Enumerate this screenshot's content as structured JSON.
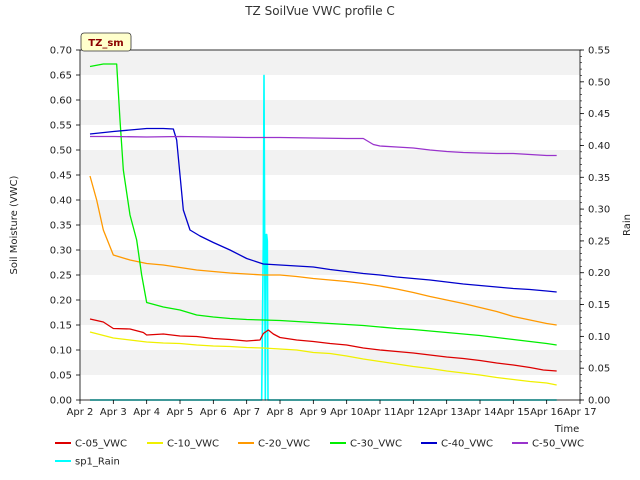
{
  "chart_data": {
    "type": "line",
    "title": "TZ SoilVue VWC profile C",
    "xlabel": "Time",
    "ylabel": "Soil Moisture (VWC)",
    "y2label": "Rain",
    "tag": "TZ_sm",
    "xlim": [
      2,
      17
    ],
    "ylim": [
      0,
      0.7
    ],
    "y2lim": [
      0,
      0.55
    ],
    "x_ticks": [
      2,
      3,
      4,
      5,
      6,
      7,
      8,
      9,
      10,
      11,
      12,
      13,
      14,
      15,
      16,
      17
    ],
    "x_tick_labels": [
      "Apr 2",
      "Apr 3",
      "Apr 4",
      "Apr 5",
      "Apr 6",
      "Apr 7",
      "Apr 8",
      "Apr 9",
      "Apr 10",
      "Apr 11",
      "Apr 12",
      "Apr 13",
      "Apr 14",
      "Apr 15",
      "Apr 16",
      "Apr 17"
    ],
    "y_ticks": [
      0,
      0.05,
      0.1,
      0.15,
      0.2,
      0.25,
      0.3,
      0.35,
      0.4,
      0.45,
      0.5,
      0.55,
      0.6,
      0.65,
      0.7
    ],
    "y_tick_labels": [
      "0.00",
      "0.05",
      "0.10",
      "0.15",
      "0.20",
      "0.25",
      "0.30",
      "0.35",
      "0.40",
      "0.45",
      "0.50",
      "0.55",
      "0.60",
      "0.65",
      "0.70"
    ],
    "y2_ticks": [
      0,
      0.05,
      0.1,
      0.15,
      0.2,
      0.25,
      0.3,
      0.35,
      0.4,
      0.45,
      0.5,
      0.55
    ],
    "y2_tick_labels": [
      "0.00",
      "0.05",
      "0.10",
      "0.15",
      "0.20",
      "0.25",
      "0.30",
      "0.35",
      "0.40",
      "0.45",
      "0.50",
      "0.55"
    ],
    "grid": "horizontal bands",
    "legend_placement": "bottom",
    "series": [
      {
        "name": "C-05_VWC",
        "color": "#dd0000",
        "axis": "left",
        "x": [
          2.3,
          2.7,
          3.0,
          3.5,
          3.9,
          4.0,
          4.5,
          5.0,
          5.5,
          6.0,
          6.5,
          7.0,
          7.4,
          7.5,
          7.65,
          7.8,
          8.0,
          8.5,
          9.0,
          9.5,
          10.0,
          10.5,
          11.0,
          11.5,
          12.0,
          12.5,
          13.0,
          13.5,
          14.0,
          14.5,
          15.0,
          15.5,
          15.9,
          16.3
        ],
        "y": [
          0.162,
          0.156,
          0.143,
          0.142,
          0.135,
          0.13,
          0.132,
          0.128,
          0.127,
          0.123,
          0.121,
          0.118,
          0.12,
          0.133,
          0.14,
          0.132,
          0.125,
          0.12,
          0.117,
          0.113,
          0.11,
          0.104,
          0.1,
          0.097,
          0.094,
          0.09,
          0.086,
          0.083,
          0.079,
          0.074,
          0.07,
          0.065,
          0.06,
          0.058
        ]
      },
      {
        "name": "C-10_VWC",
        "color": "#f0f000",
        "axis": "left",
        "x": [
          2.3,
          3.0,
          3.5,
          4.0,
          4.5,
          5.0,
          5.5,
          6.0,
          6.5,
          7.0,
          7.5,
          8.0,
          8.5,
          9.0,
          9.5,
          10.0,
          10.5,
          11.0,
          11.5,
          12.0,
          12.5,
          13.0,
          13.5,
          14.0,
          14.5,
          15.0,
          15.5,
          16.0,
          16.3
        ],
        "y": [
          0.136,
          0.124,
          0.12,
          0.116,
          0.114,
          0.113,
          0.11,
          0.108,
          0.107,
          0.105,
          0.104,
          0.102,
          0.1,
          0.095,
          0.093,
          0.088,
          0.082,
          0.077,
          0.072,
          0.067,
          0.063,
          0.058,
          0.054,
          0.05,
          0.045,
          0.041,
          0.037,
          0.034,
          0.03
        ]
      },
      {
        "name": "C-20_VWC",
        "color": "#ff9900",
        "axis": "left",
        "x": [
          2.3,
          2.5,
          2.7,
          3.0,
          3.5,
          4.0,
          4.5,
          5.0,
          5.5,
          6.0,
          6.5,
          7.0,
          7.5,
          8.0,
          8.5,
          9.0,
          9.5,
          10.0,
          10.5,
          11.0,
          11.5,
          12.0,
          12.5,
          13.0,
          13.5,
          14.0,
          14.5,
          15.0,
          15.5,
          16.0,
          16.3
        ],
        "y": [
          0.448,
          0.4,
          0.34,
          0.29,
          0.28,
          0.273,
          0.27,
          0.265,
          0.26,
          0.257,
          0.254,
          0.252,
          0.25,
          0.25,
          0.247,
          0.243,
          0.24,
          0.237,
          0.233,
          0.228,
          0.222,
          0.215,
          0.207,
          0.2,
          0.193,
          0.185,
          0.177,
          0.167,
          0.16,
          0.153,
          0.15
        ]
      },
      {
        "name": "C-30_VWC",
        "color": "#00ee00",
        "axis": "left",
        "x": [
          2.3,
          2.7,
          3.1,
          3.2,
          3.3,
          3.5,
          3.7,
          3.85,
          4.0,
          4.5,
          5.0,
          5.5,
          6.0,
          6.5,
          7.0,
          7.5,
          8.0,
          8.5,
          9.0,
          9.5,
          10.0,
          10.5,
          11.0,
          11.5,
          12.0,
          12.5,
          13.0,
          13.5,
          14.0,
          14.5,
          15.0,
          15.5,
          16.0,
          16.3
        ],
        "y": [
          0.667,
          0.672,
          0.672,
          0.56,
          0.46,
          0.37,
          0.32,
          0.25,
          0.195,
          0.186,
          0.18,
          0.17,
          0.166,
          0.163,
          0.161,
          0.16,
          0.159,
          0.157,
          0.155,
          0.153,
          0.151,
          0.149,
          0.146,
          0.143,
          0.141,
          0.138,
          0.135,
          0.132,
          0.129,
          0.125,
          0.121,
          0.117,
          0.113,
          0.11
        ]
      },
      {
        "name": "C-40_VWC",
        "color": "#0000cc",
        "axis": "left",
        "x": [
          2.3,
          3.0,
          3.5,
          4.0,
          4.5,
          4.8,
          4.9,
          5.0,
          5.1,
          5.3,
          5.6,
          6.0,
          6.5,
          7.0,
          7.5,
          8.0,
          8.5,
          9.0,
          9.5,
          10.0,
          10.5,
          11.0,
          11.5,
          12.0,
          12.5,
          13.0,
          13.5,
          14.0,
          14.5,
          15.0,
          15.5,
          16.0,
          16.3
        ],
        "y": [
          0.532,
          0.537,
          0.54,
          0.543,
          0.543,
          0.542,
          0.52,
          0.45,
          0.38,
          0.34,
          0.328,
          0.315,
          0.3,
          0.283,
          0.272,
          0.27,
          0.268,
          0.266,
          0.261,
          0.257,
          0.253,
          0.25,
          0.246,
          0.243,
          0.24,
          0.236,
          0.232,
          0.229,
          0.226,
          0.223,
          0.221,
          0.218,
          0.216
        ]
      },
      {
        "name": "C-50_VWC",
        "color": "#9933cc",
        "axis": "left",
        "x": [
          2.3,
          3.0,
          4.0,
          5.0,
          6.0,
          7.0,
          8.0,
          9.0,
          10.0,
          10.5,
          10.8,
          11.0,
          11.5,
          12.0,
          12.5,
          13.0,
          13.5,
          14.0,
          14.5,
          15.0,
          15.5,
          16.0,
          16.3
        ],
        "y": [
          0.527,
          0.527,
          0.526,
          0.527,
          0.526,
          0.525,
          0.525,
          0.524,
          0.523,
          0.523,
          0.511,
          0.508,
          0.506,
          0.504,
          0.5,
          0.497,
          0.495,
          0.494,
          0.493,
          0.493,
          0.491,
          0.489,
          0.489
        ]
      },
      {
        "name": "sp1_Rain",
        "color": "#00ffff",
        "axis": "right",
        "x": [
          2.3,
          7.45,
          7.5,
          7.52,
          7.54,
          7.56,
          7.58,
          7.6,
          7.62,
          7.64,
          7.66,
          7.68,
          7.7,
          16.3
        ],
        "y": [
          0,
          0,
          0.25,
          0.51,
          0.25,
          0,
          0.26,
          0.26,
          0.25,
          0,
          0,
          0,
          0,
          0
        ]
      }
    ]
  }
}
